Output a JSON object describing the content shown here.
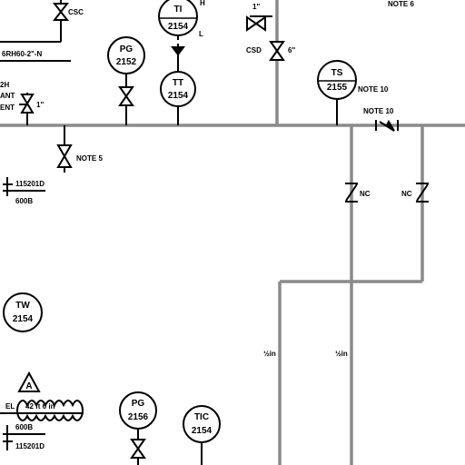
{
  "top": {
    "csc": "CSC",
    "note6": "NOTE 6",
    "tiH": "H",
    "tiL": "L",
    "line_spec": "6RH60-2\"-N",
    "valve_size_1": "1\"",
    "csd": "CSD",
    "valve_size_6": "6\""
  },
  "instruments": {
    "ti_top": {
      "code": "TI",
      "num": "2154"
    },
    "pg_top": {
      "code": "PG",
      "num": "2152"
    },
    "tt": {
      "code": "TT",
      "num": "2154"
    },
    "ts": {
      "code": "TS",
      "num": "2155"
    },
    "tw": {
      "code": "TW",
      "num": "2154"
    },
    "pg_bot": {
      "code": "PG",
      "num": "2156"
    },
    "tic": {
      "code": "TIC",
      "num": "2154"
    }
  },
  "left": {
    "vent_a": "2H",
    "vent_b": "ANT",
    "vent_c": "ENT",
    "drain_size": "1\"",
    "note5": "NOTE 5",
    "elev_top": "115201D",
    "elev_top_sub": "600B",
    "triangle_num": "A",
    "el_label": "EL",
    "el_value": "42 ft 6 in",
    "elev_bot_sub": "600B",
    "elev_bot": "115201D"
  },
  "right": {
    "note10_a": "NOTE 10",
    "note10_b": "NOTE 10",
    "nc_left": "NC",
    "nc_right": "NC",
    "flow_a": "½in",
    "flow_b": "½in"
  }
}
